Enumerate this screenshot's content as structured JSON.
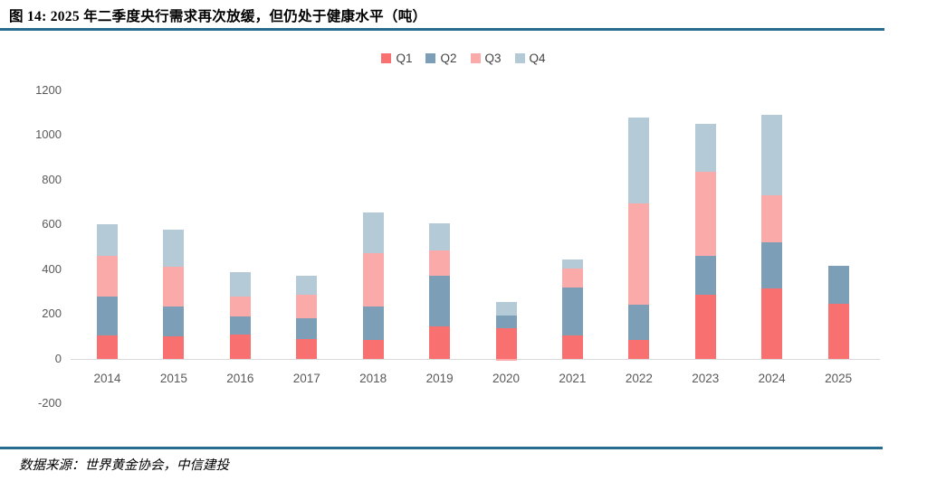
{
  "figure": {
    "title": "图 14: 2025 年二季度央行需求再次放缓，但仍处于健康水平（吨）",
    "source": "数据来源：世界黄金协会，中信建投"
  },
  "colors": {
    "q1": "#F87070",
    "q2": "#7C9FB7",
    "q3": "#FBAAAA",
    "q4": "#B4CAD6",
    "rule": "#256C8E",
    "baseline": "#D9D9D9",
    "tick_text": "#595959"
  },
  "chart_data": {
    "type": "bar",
    "stacked": true,
    "title": "图 14: 2025 年二季度央行需求再次放缓，但仍处于健康水平（吨）",
    "unit": "吨",
    "categories": [
      "2014",
      "2015",
      "2016",
      "2017",
      "2018",
      "2019",
      "2020",
      "2021",
      "2022",
      "2023",
      "2024",
      "2025"
    ],
    "series": [
      {
        "name": "Q1",
        "color_key": "q1",
        "values": [
          105,
          100,
          108,
          90,
          85,
          145,
          138,
          105,
          83,
          285,
          315,
          245
        ]
      },
      {
        "name": "Q2",
        "color_key": "q2",
        "values": [
          175,
          135,
          80,
          93,
          148,
          225,
          55,
          215,
          158,
          175,
          205,
          170
        ]
      },
      {
        "name": "Q3",
        "color_key": "q3",
        "values": [
          180,
          175,
          90,
          102,
          240,
          115,
          -10,
          85,
          455,
          375,
          210,
          0
        ]
      },
      {
        "name": "Q4",
        "color_key": "q4",
        "values": [
          140,
          168,
          110,
          87,
          180,
          120,
          62,
          40,
          382,
          215,
          360,
          0
        ]
      }
    ],
    "ylim": [
      -200,
      1200
    ],
    "yticks": [
      1200,
      1000,
      800,
      600,
      400,
      200,
      0,
      -200
    ],
    "xlabel": "",
    "ylabel": "",
    "grid": false,
    "legend_position": "top-center"
  }
}
